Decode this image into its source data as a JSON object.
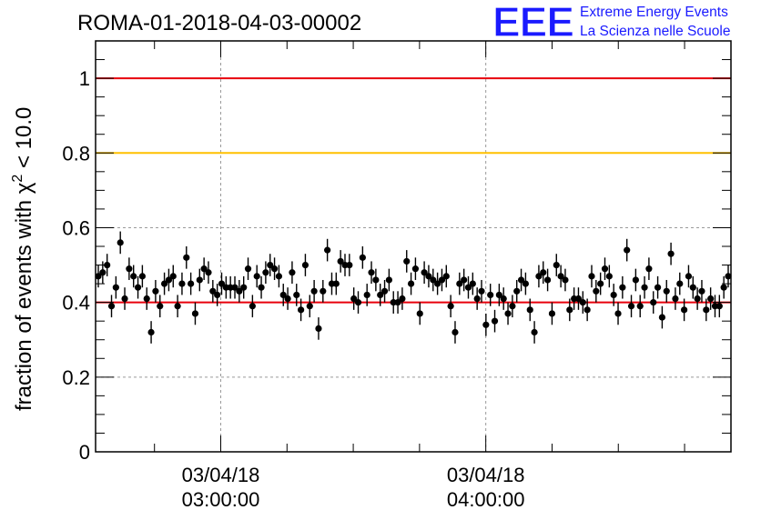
{
  "chart_data": {
    "type": "scatter",
    "title": "ROMA-01-2018-04-03-00002",
    "ylabel": "fraction of events with χ² < 10.0",
    "ylabel_parts": {
      "prefix": "fraction of events with ",
      "chi": "χ",
      "sup": "2",
      "suffix": " < 10.0"
    },
    "xlabel": "",
    "ylim": [
      0,
      1.1
    ],
    "y_ticks": [
      0,
      0.2,
      0.4,
      0.6,
      0.8,
      1
    ],
    "y_tick_labels": [
      "0",
      "0.2",
      "0.4",
      "0.6",
      "0.8",
      "1"
    ],
    "x_range": [
      "03/04/18 02:31:40",
      "03/04/18 04:55:30"
    ],
    "x_tick_labels": [
      {
        "date": "03/04/18",
        "time": "03:00:00"
      },
      {
        "date": "03/04/18",
        "time": "04:00:00"
      }
    ],
    "reference_lines": [
      {
        "y": 1.0,
        "color": "#e8000b"
      },
      {
        "y": 0.8,
        "color": "#ffc000"
      },
      {
        "y": 0.4,
        "color": "#e8000b"
      }
    ],
    "grid": true,
    "series": [
      {
        "values": [
          0.47,
          0.48,
          0.5,
          0.39,
          0.44,
          0.56,
          0.41,
          0.49,
          0.47,
          0.44,
          0.47,
          0.41,
          0.32,
          0.43,
          0.39,
          0.45,
          0.46,
          0.47,
          0.39,
          0.45,
          0.52,
          0.45,
          0.37,
          0.46,
          0.49,
          0.48,
          0.43,
          0.42,
          0.45,
          0.44,
          0.44,
          0.44,
          0.43,
          0.44,
          0.49,
          0.39,
          0.47,
          0.44,
          0.48,
          0.5,
          0.49,
          0.47,
          0.42,
          0.41,
          0.48,
          0.42,
          0.38,
          0.5,
          0.39,
          0.43,
          0.33,
          0.43,
          0.54,
          0.45,
          0.45,
          0.51,
          0.5,
          0.5,
          0.41,
          0.4,
          0.52,
          0.42,
          0.48,
          0.46,
          0.42,
          0.43,
          0.46,
          0.4,
          0.4,
          0.41,
          0.51,
          0.45,
          0.49,
          0.37,
          0.48,
          0.47,
          0.46,
          0.45,
          0.46,
          0.47,
          0.39,
          0.32,
          0.45,
          0.46,
          0.44,
          0.45,
          0.41,
          0.43,
          0.34,
          0.42,
          0.35,
          0.42,
          0.41,
          0.37,
          0.39,
          0.43,
          0.46,
          0.45,
          0.38,
          0.32,
          0.47,
          0.48,
          0.46,
          0.37,
          0.5,
          0.47,
          0.46,
          0.38,
          0.41,
          0.41,
          0.4,
          0.38,
          0.47,
          0.43,
          0.45,
          0.49,
          0.47,
          0.42,
          0.37,
          0.44,
          0.54,
          0.39,
          0.46,
          0.39,
          0.44,
          0.49,
          0.4,
          0.44,
          0.36,
          0.43,
          0.53,
          0.41,
          0.45,
          0.38,
          0.47,
          0.44,
          0.41,
          0.43,
          0.38,
          0.41,
          0.39,
          0.39,
          0.44,
          0.47
        ],
        "error": 0.03,
        "color": "#000000"
      }
    ]
  },
  "logo": {
    "mark": "EEE",
    "line1": "Extreme Energy Events",
    "line2": "La Scienza nelle Scuole",
    "color": "#1a1aff"
  }
}
